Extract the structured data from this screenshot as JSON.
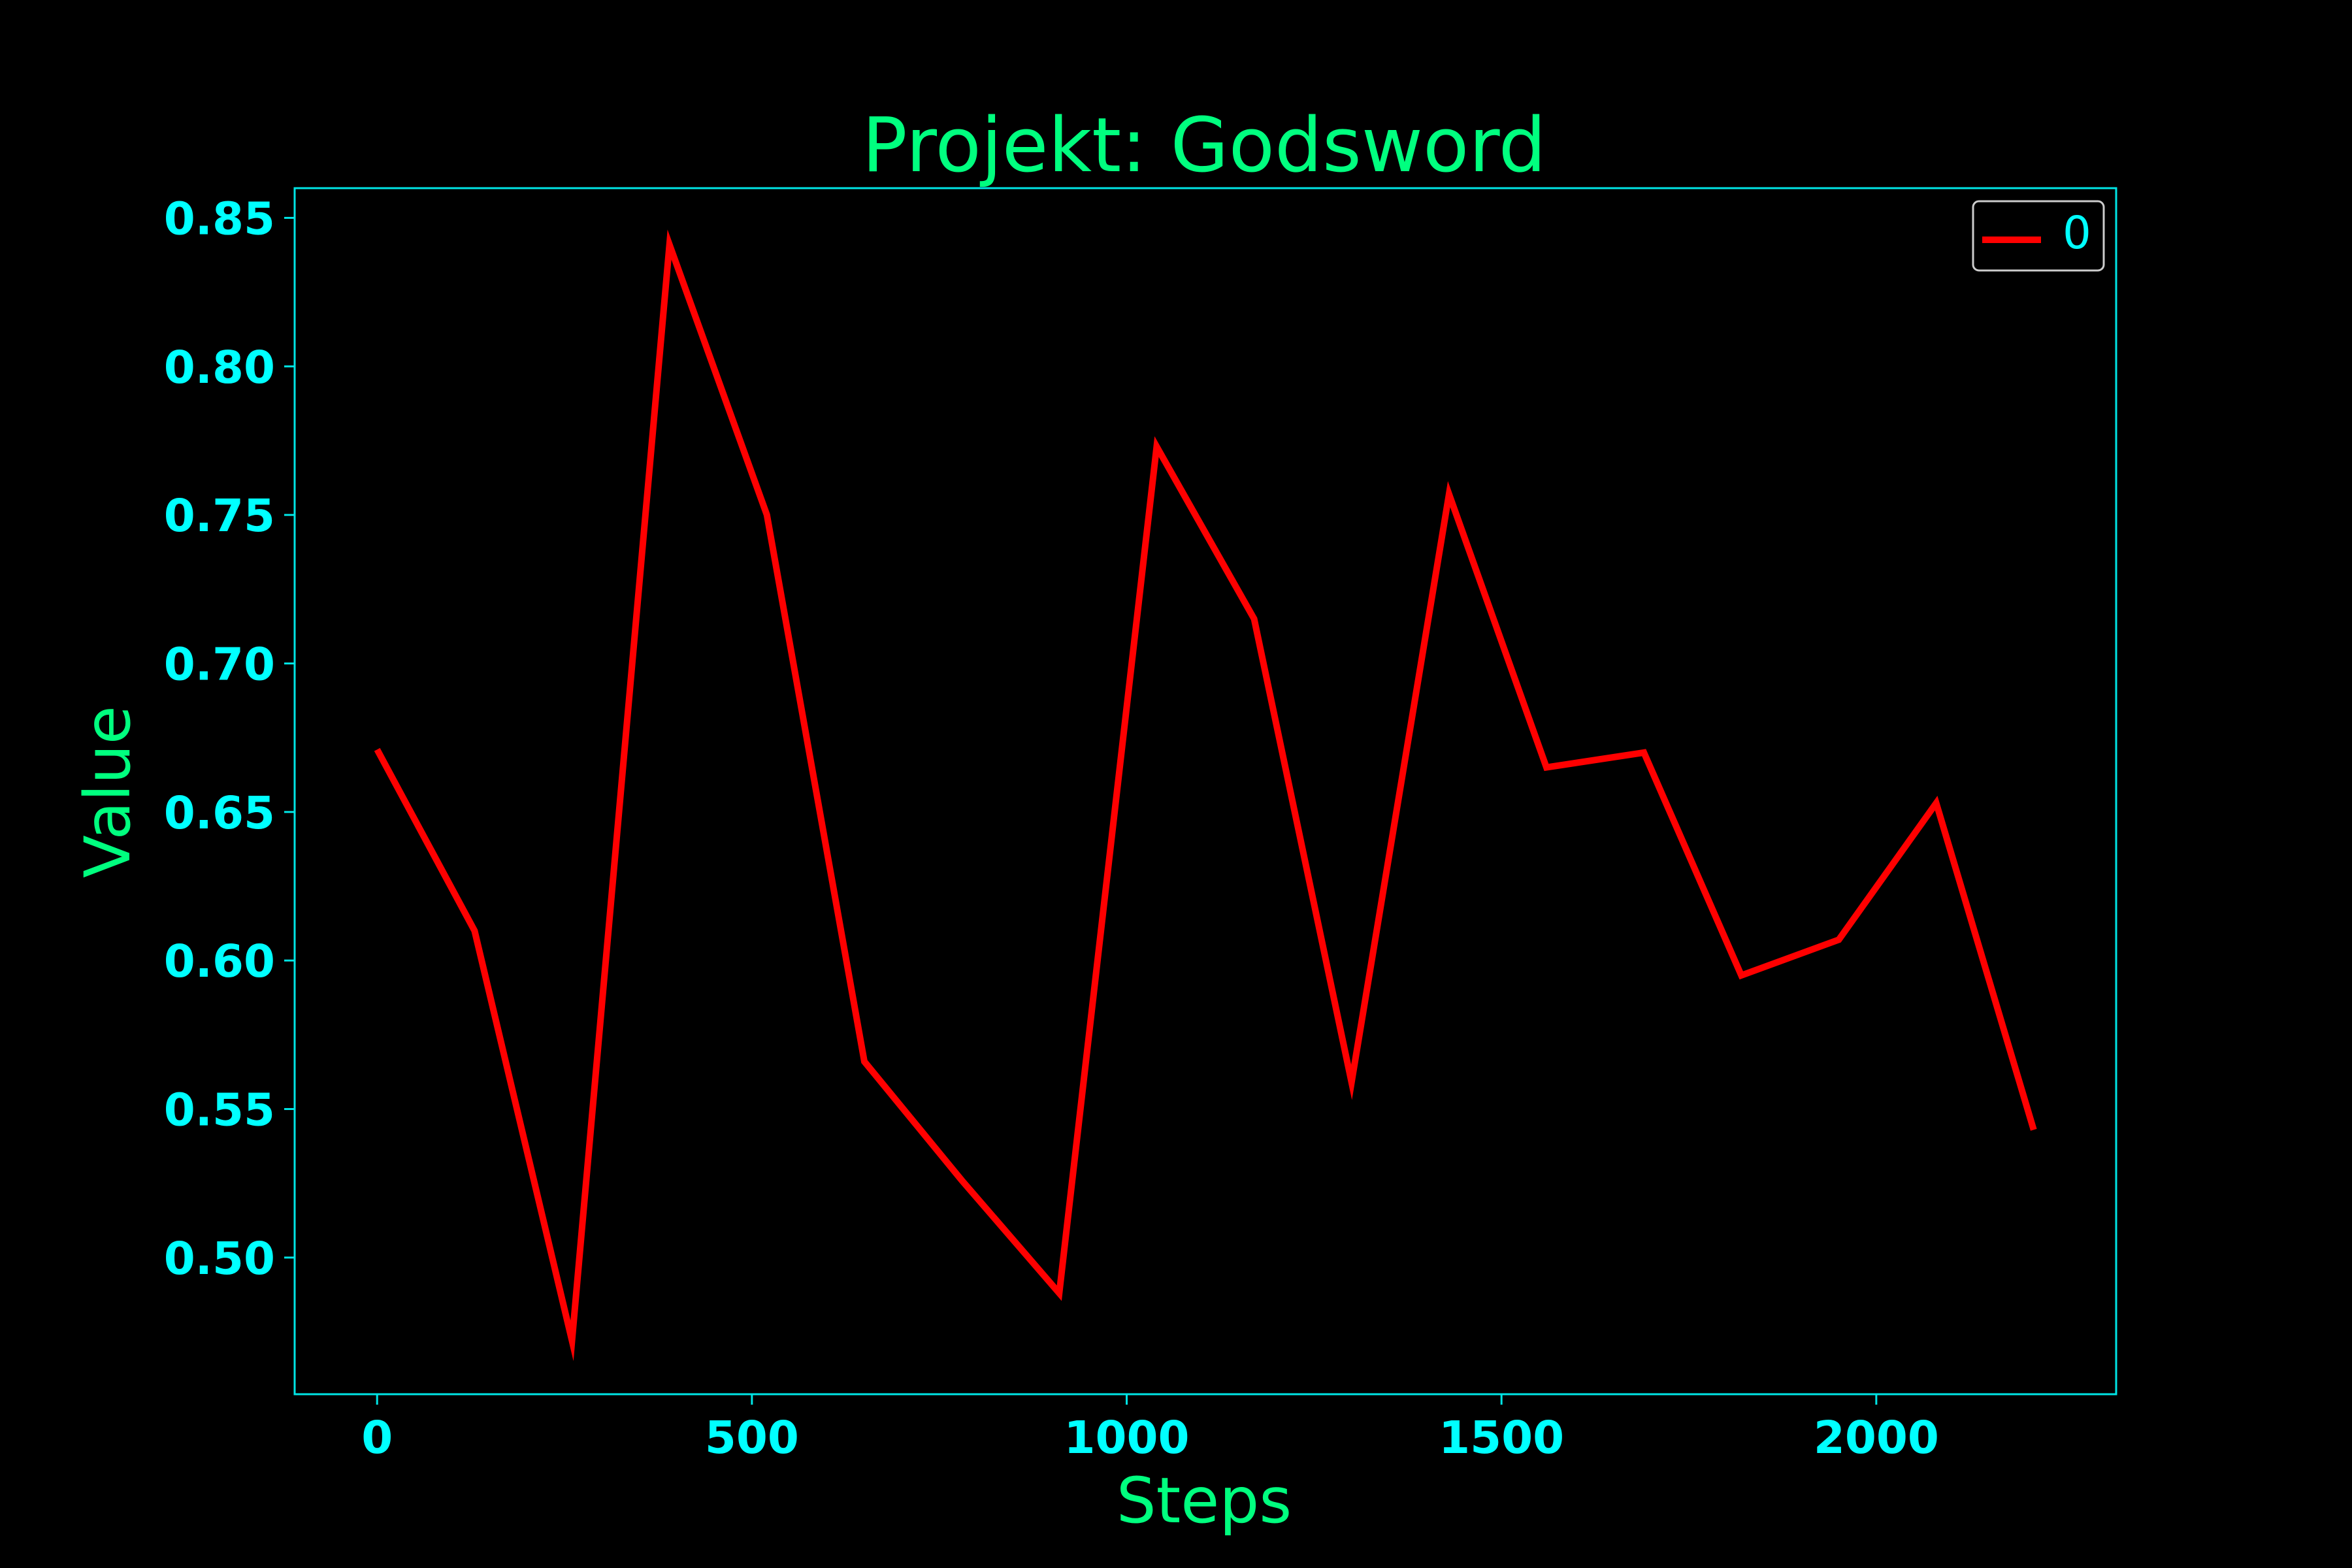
{
  "colors": {
    "background": "#000000",
    "title": "#00ff7f",
    "axis_label": "#00ff7f",
    "tick": "#00ffff",
    "frame": "#00e5e5",
    "series": "#ff0000",
    "legend_border": "#cccccc"
  },
  "chart_data": {
    "type": "line",
    "title": "Projekt: Godsword",
    "xlabel": "Steps",
    "ylabel": "Value",
    "xlim": [
      -110,
      2320
    ],
    "ylim": [
      0.454,
      0.86
    ],
    "xticks": [
      0,
      500,
      1000,
      1500,
      2000
    ],
    "xtick_labels": [
      "0",
      "500",
      "1000",
      "1500",
      "2000"
    ],
    "yticks": [
      0.5,
      0.55,
      0.6,
      0.65,
      0.7,
      0.75,
      0.8,
      0.85
    ],
    "ytick_labels": [
      "0.50",
      "0.55",
      "0.60",
      "0.65",
      "0.70",
      "0.75",
      "0.80",
      "0.85"
    ],
    "grid": false,
    "legend_position": "top-right",
    "series": [
      {
        "name": "0",
        "color": "#ff0000",
        "x": [
          0,
          130,
          260,
          390,
          520,
          650,
          780,
          910,
          1040,
          1170,
          1300,
          1430,
          1560,
          1690,
          1820,
          1950,
          2080,
          2210
        ],
        "y": [
          0.671,
          0.61,
          0.472,
          0.841,
          0.75,
          0.566,
          0.526,
          0.488,
          0.773,
          0.715,
          0.559,
          0.757,
          0.665,
          0.67,
          0.595,
          0.607,
          0.653,
          0.543
        ]
      }
    ]
  }
}
